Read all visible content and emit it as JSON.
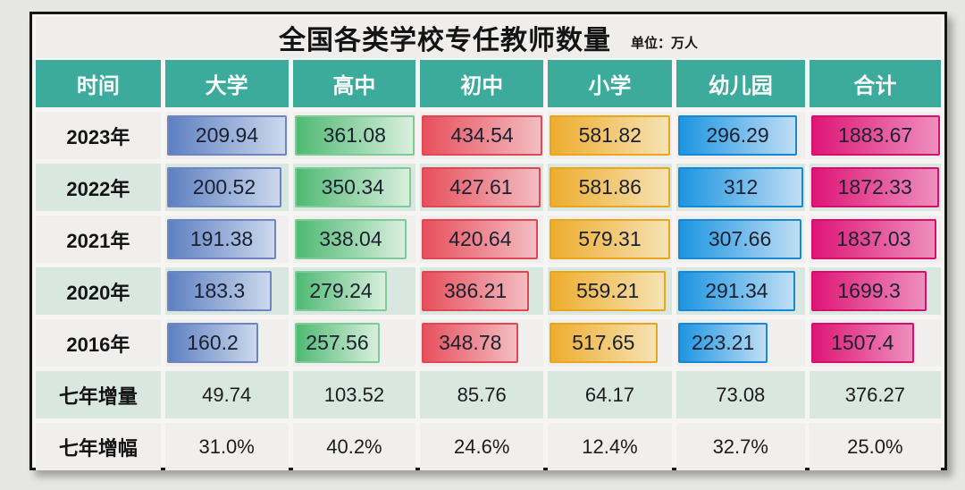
{
  "title": "全国各类学校专任教师数量",
  "unit_label": "单位：万人",
  "colors": {
    "header_teal": "#3cab9b",
    "row_light": "#f0efed",
    "row_teal": "#d9e7e1",
    "frame_border": "#161616",
    "bar_university": [
      "#5e80c2",
      "#ccd8ec"
    ],
    "bar_highschool": [
      "#4fb973",
      "#d9efdd"
    ],
    "bar_middleschool": [
      "#e7505c",
      "#f3bcc2"
    ],
    "bar_primaryschool": [
      "#eead2e",
      "#f6e2b4"
    ],
    "bar_kindergarten": [
      "#1c95e2",
      "#c0def4"
    ],
    "bar_total": [
      "#de1677",
      "#ee8fbc"
    ]
  },
  "chart_data": {
    "type": "table",
    "title": "全国各类学校专任教师数量",
    "unit": "万人",
    "columns": [
      "时间",
      "大学",
      "高中",
      "初中",
      "小学",
      "幼儿园",
      "合计"
    ],
    "bar_note": "value cells in year rows are horizontal bars, width proportional to value / column max",
    "rows": [
      {
        "label": "2023年",
        "kind": "bars",
        "values": [
          209.94,
          361.08,
          434.54,
          581.82,
          296.29,
          1883.67
        ]
      },
      {
        "label": "2022年",
        "kind": "bars",
        "values": [
          200.52,
          350.34,
          427.61,
          581.86,
          312,
          1872.33
        ]
      },
      {
        "label": "2021年",
        "kind": "bars",
        "values": [
          191.38,
          338.04,
          420.64,
          579.31,
          307.66,
          1837.03
        ]
      },
      {
        "label": "2020年",
        "kind": "bars",
        "values": [
          183.3,
          279.24,
          386.21,
          559.21,
          291.34,
          1699.3
        ]
      },
      {
        "label": "2016年",
        "kind": "bars",
        "values": [
          160.2,
          257.56,
          348.78,
          517.65,
          223.21,
          1507.4
        ]
      },
      {
        "label": "七年增量",
        "kind": "text",
        "values": [
          49.74,
          103.52,
          85.76,
          64.17,
          73.08,
          376.27
        ]
      },
      {
        "label": "七年增幅",
        "kind": "text",
        "values": [
          "31.0%",
          "40.2%",
          "24.6%",
          "12.4%",
          "32.7%",
          "25.0%"
        ]
      }
    ]
  }
}
